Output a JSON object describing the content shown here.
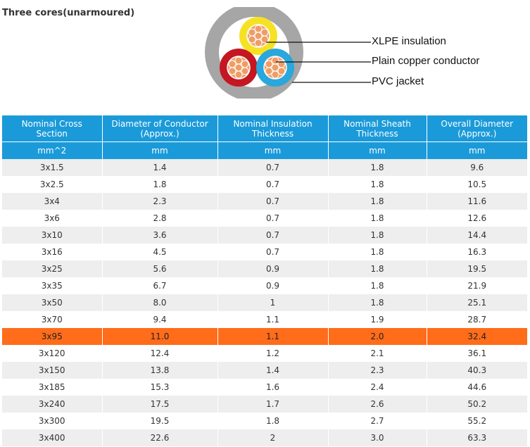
{
  "title": "Three cores(unarmoured)",
  "diagram": {
    "labels": [
      "XLPE insulation",
      "Plain copper conductor",
      "PVC jacket"
    ],
    "colors": {
      "jacket": "#a6a6a6",
      "yellow_core": "#f6e224",
      "red_core": "#c41722",
      "blue_core": "#2aa7dc",
      "copper": "#ef9d65"
    }
  },
  "table": {
    "headers": [
      "Nominal Cross Section",
      "Diameter of Conductor (Approx.)",
      "Nominal Insulation Thickness",
      "Nominal Sheath Thickness",
      "Overall Diameter (Approx.)"
    ],
    "units": [
      "mm^2",
      "mm",
      "mm",
      "mm",
      "mm"
    ],
    "highlight_color": "#ff6c1a",
    "header_color": "#1b9ad9",
    "rows": [
      [
        "3x1.5",
        "1.4",
        "0.7",
        "1.8",
        "9.6"
      ],
      [
        "3x2.5",
        "1.8",
        "0.7",
        "1.8",
        "10.5"
      ],
      [
        "3x4",
        "2.3",
        "0.7",
        "1.8",
        "11.6"
      ],
      [
        "3x6",
        "2.8",
        "0.7",
        "1.8",
        "12.6"
      ],
      [
        "3x10",
        "3.6",
        "0.7",
        "1.8",
        "14.4"
      ],
      [
        "3x16",
        "4.5",
        "0.7",
        "1.8",
        "16.3"
      ],
      [
        "3x25",
        "5.6",
        "0.9",
        "1.8",
        "19.5"
      ],
      [
        "3x35",
        "6.7",
        "0.9",
        "1.8",
        "21.9"
      ],
      [
        "3x50",
        "8.0",
        "1",
        "1.8",
        "25.1"
      ],
      [
        "3x70",
        "9.4",
        "1.1",
        "1.9",
        "28.7"
      ],
      [
        "3x95",
        "11.0",
        "1.1",
        "2.0",
        "32.4"
      ],
      [
        "3x120",
        "12.4",
        "1.2",
        "2.1",
        "36.1"
      ],
      [
        "3x150",
        "13.8",
        "1.4",
        "2.3",
        "40.3"
      ],
      [
        "3x185",
        "15.3",
        "1.6",
        "2.4",
        "44.6"
      ],
      [
        "3x240",
        "17.5",
        "1.7",
        "2.6",
        "50.2"
      ],
      [
        "3x300",
        "19.5",
        "1.8",
        "2.7",
        "55.2"
      ],
      [
        "3x400",
        "22.6",
        "2",
        "3.0",
        "63.3"
      ]
    ],
    "highlighted_section": "3x95"
  }
}
